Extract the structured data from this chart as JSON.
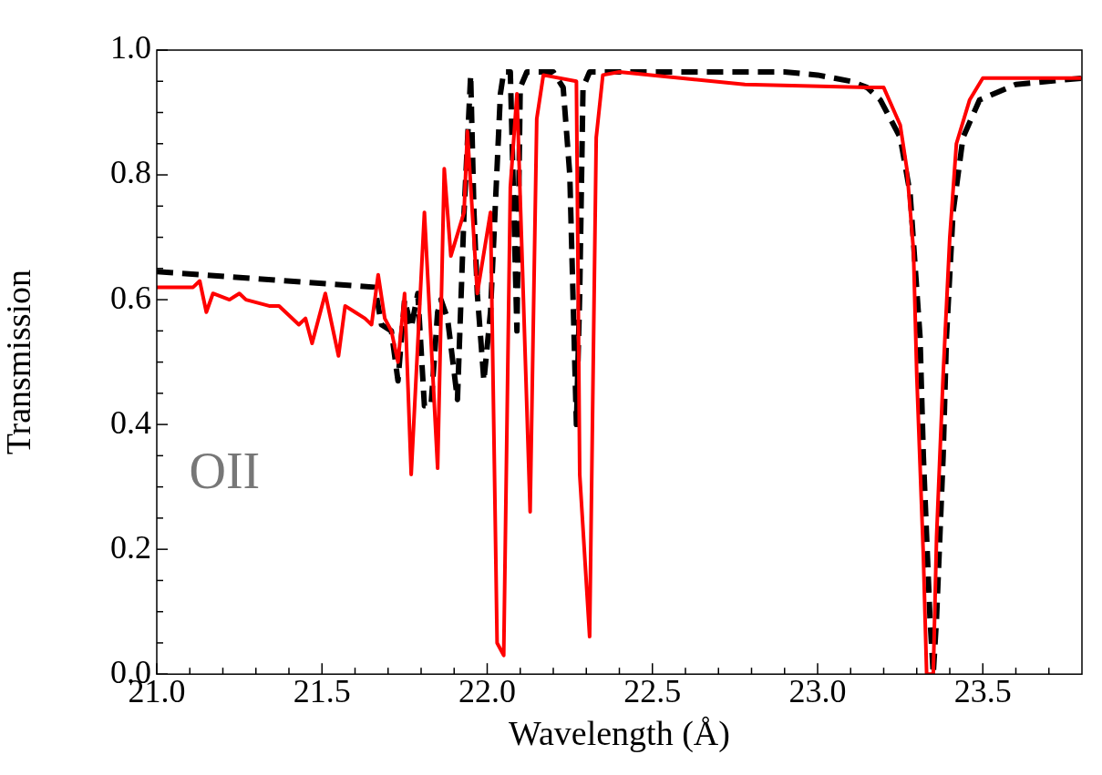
{
  "chart_data": {
    "type": "line",
    "xlabel": "Wavelength (Å)",
    "ylabel": "Transmission",
    "annotations": [
      "OII"
    ],
    "xlim": [
      21.0,
      23.8
    ],
    "ylim": [
      0.0,
      1.0
    ],
    "xticks": [
      {
        "value": 21.0,
        "label": "21.0"
      },
      {
        "value": 21.1,
        "label": null
      },
      {
        "value": 21.2,
        "label": null
      },
      {
        "value": 21.3,
        "label": null
      },
      {
        "value": 21.4,
        "label": null
      },
      21.5,
      {
        "value": 21.6,
        "label": null
      },
      {
        "value": 21.7,
        "label": null
      },
      {
        "value": 21.8,
        "label": null
      },
      {
        "value": 21.9,
        "label": null
      },
      {
        "value": 22.0,
        "label": "22.0"
      },
      {
        "value": 22.1,
        "label": null
      },
      {
        "value": 22.2,
        "label": null
      },
      {
        "value": 22.3,
        "label": null
      },
      {
        "value": 22.4,
        "label": null
      },
      22.5,
      {
        "value": 22.6,
        "label": null
      },
      {
        "value": 22.7,
        "label": null
      },
      {
        "value": 22.8,
        "label": null
      },
      {
        "value": 22.9,
        "label": null
      },
      {
        "value": 23.0,
        "label": "23.0"
      },
      {
        "value": 23.1,
        "label": null
      },
      {
        "value": 23.2,
        "label": null
      },
      {
        "value": 23.3,
        "label": null
      },
      {
        "value": 23.4,
        "label": null
      },
      23.5,
      {
        "value": 23.6,
        "label": null
      },
      {
        "value": 23.7,
        "label": null
      }
    ],
    "yticks": [
      {
        "value": 0,
        "label": "0.0"
      },
      {
        "value": 0.05,
        "label": null
      },
      {
        "value": 0.1,
        "label": null
      },
      {
        "value": 0.15,
        "label": null
      },
      0.2,
      {
        "value": 0.25,
        "label": null
      },
      {
        "value": 0.3,
        "label": null
      },
      {
        "value": 0.35,
        "label": null
      },
      0.4,
      {
        "value": 0.45,
        "label": null
      },
      {
        "value": 0.5,
        "label": null
      },
      {
        "value": 0.55,
        "label": null
      },
      0.6,
      {
        "value": 0.65,
        "label": null
      },
      {
        "value": 0.7,
        "label": null
      },
      {
        "value": 0.75,
        "label": null
      },
      0.8,
      {
        "value": 0.85,
        "label": null
      },
      {
        "value": 0.9,
        "label": null
      },
      {
        "value": 0.95,
        "label": null
      },
      {
        "value": 1,
        "label": "1.0"
      }
    ],
    "grid": false,
    "legend": false,
    "marker": "none",
    "series": [
      {
        "color": "#ff0000",
        "line_style": "solid",
        "x": [
          21.0,
          21.05,
          21.08,
          21.11,
          21.13,
          21.15,
          21.17,
          21.22,
          21.25,
          21.27,
          21.34,
          21.37,
          21.43,
          21.45,
          21.47,
          21.51,
          21.55,
          21.57,
          21.6,
          21.63,
          21.65,
          21.67,
          21.69,
          21.71,
          21.73,
          21.75,
          21.77,
          21.81,
          21.85,
          21.87,
          21.89,
          21.93,
          21.94,
          21.97,
          22.01,
          22.03,
          22.05,
          22.07,
          22.09,
          22.13,
          22.15,
          22.17,
          22.27,
          22.28,
          22.31,
          22.33,
          22.35,
          22.4,
          22.78,
          23.15,
          23.2,
          23.25,
          23.27,
          23.29,
          23.3,
          23.32,
          23.33,
          23.35,
          23.36,
          23.38,
          23.4,
          23.42,
          23.46,
          23.5,
          23.8
        ],
        "values": [
          0.62,
          0.62,
          0.62,
          0.62,
          0.63,
          0.58,
          0.61,
          0.6,
          0.61,
          0.6,
          0.59,
          0.59,
          0.56,
          0.57,
          0.53,
          0.61,
          0.51,
          0.59,
          0.58,
          0.57,
          0.56,
          0.64,
          0.57,
          0.55,
          0.5,
          0.61,
          0.32,
          0.74,
          0.33,
          0.81,
          0.67,
          0.74,
          0.87,
          0.61,
          0.74,
          0.05,
          0.03,
          0.78,
          0.93,
          0.26,
          0.89,
          0.96,
          0.95,
          0.32,
          0.06,
          0.86,
          0.96,
          0.965,
          0.945,
          0.94,
          0.94,
          0.88,
          0.81,
          0.68,
          0.48,
          0.19,
          0.0,
          0.0,
          0.22,
          0.48,
          0.7,
          0.85,
          0.92,
          0.955,
          0.955
        ]
      },
      {
        "color": "#000000",
        "line_style": "dashed",
        "x": [
          21.0,
          21.66,
          21.68,
          21.71,
          21.73,
          21.75,
          21.77,
          21.79,
          21.81,
          21.83,
          21.85,
          21.86,
          21.88,
          21.91,
          21.93,
          21.95,
          21.96,
          21.97,
          21.99,
          22.01,
          22.04,
          22.05,
          22.07,
          22.09,
          22.1,
          22.12,
          22.2,
          22.23,
          22.25,
          22.27,
          22.28,
          22.29,
          22.31,
          22.9,
          23.0,
          23.1,
          23.15,
          23.19,
          23.25,
          23.28,
          23.31,
          23.32,
          23.34,
          23.35,
          23.36,
          23.38,
          23.39,
          23.41,
          23.44,
          23.49,
          23.6,
          23.8
        ],
        "values": [
          0.645,
          0.62,
          0.56,
          0.55,
          0.47,
          0.6,
          0.555,
          0.61,
          0.43,
          0.43,
          0.58,
          0.6,
          0.57,
          0.44,
          0.74,
          0.96,
          0.74,
          0.61,
          0.47,
          0.58,
          0.93,
          0.965,
          0.965,
          0.55,
          0.94,
          0.965,
          0.965,
          0.94,
          0.8,
          0.4,
          0.61,
          0.94,
          0.965,
          0.965,
          0.96,
          0.95,
          0.94,
          0.92,
          0.86,
          0.77,
          0.54,
          0.35,
          0.09,
          0.0,
          0.09,
          0.35,
          0.54,
          0.74,
          0.86,
          0.92,
          0.945,
          0.955
        ]
      }
    ]
  }
}
